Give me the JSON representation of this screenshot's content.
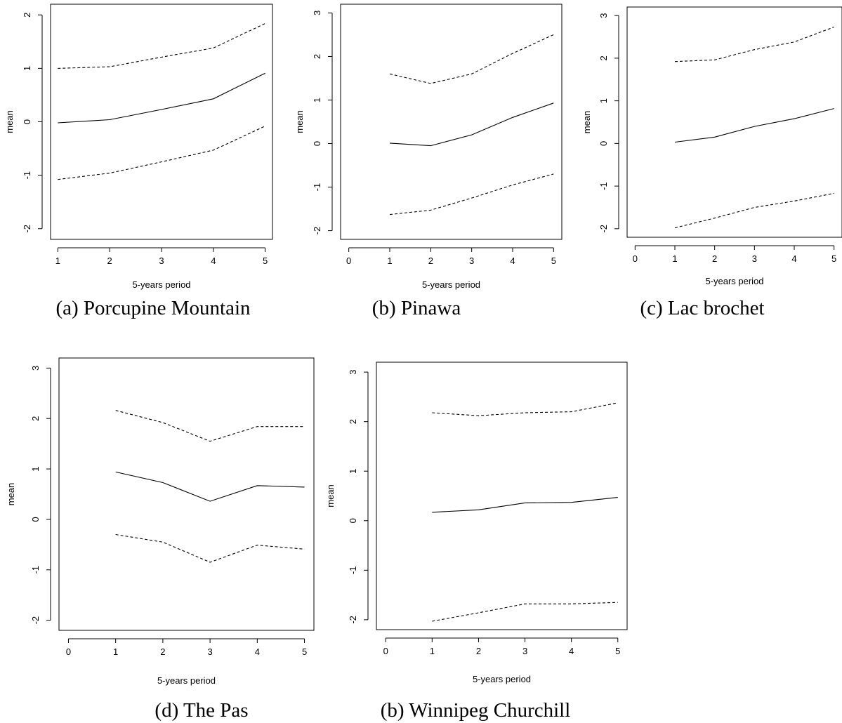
{
  "chart_data": [
    {
      "type": "line",
      "caption": "(a) Porcupine Mountain",
      "xlabel": "5-years period",
      "ylabel": "mean",
      "xlim": [
        0.86,
        5.14
      ],
      "ylim": [
        -2.2,
        2.2
      ],
      "x_ticks": [
        1,
        2,
        3,
        4,
        5
      ],
      "y_ticks": [
        -2,
        -1,
        0,
        1,
        2
      ],
      "grid": false,
      "series": [
        {
          "role": "mean",
          "style": "solid",
          "x": [
            1,
            2,
            3,
            4,
            5
          ],
          "values": [
            -0.02,
            0.04,
            0.23,
            0.43,
            0.91
          ]
        },
        {
          "role": "upper",
          "style": "dashed",
          "x": [
            1,
            2,
            3,
            4,
            5
          ],
          "values": [
            1.0,
            1.03,
            1.21,
            1.38,
            1.84
          ]
        },
        {
          "role": "lower",
          "style": "dashed",
          "x": [
            1,
            2,
            3,
            4,
            5
          ],
          "values": [
            -1.08,
            -0.96,
            -0.75,
            -0.53,
            -0.08
          ]
        }
      ]
    },
    {
      "type": "line",
      "caption": "(b) Pinawa",
      "xlabel": "5-years period",
      "ylabel": "mean",
      "xlim": [
        -0.2,
        5.2
      ],
      "ylim": [
        -2.2,
        3.2
      ],
      "x_ticks": [
        0,
        1,
        2,
        3,
        4,
        5
      ],
      "y_ticks": [
        -2,
        -1,
        0,
        1,
        2,
        3
      ],
      "grid": false,
      "series": [
        {
          "role": "mean",
          "style": "solid",
          "x": [
            1,
            2,
            3,
            4,
            5
          ],
          "values": [
            0.01,
            -0.05,
            0.2,
            0.6,
            0.93
          ]
        },
        {
          "role": "upper",
          "style": "dashed",
          "x": [
            1,
            2,
            3,
            4,
            5
          ],
          "values": [
            1.6,
            1.38,
            1.6,
            2.07,
            2.5
          ]
        },
        {
          "role": "lower",
          "style": "dashed",
          "x": [
            1,
            2,
            3,
            4,
            5
          ],
          "values": [
            -1.63,
            -1.53,
            -1.25,
            -0.95,
            -0.7
          ]
        }
      ]
    },
    {
      "type": "line",
      "caption": "(c) Lac brochet",
      "xlabel": "5-years period",
      "ylabel": "mean",
      "xlim": [
        -0.2,
        5.2
      ],
      "ylim": [
        -2.2,
        3.2
      ],
      "x_ticks": [
        0,
        1,
        2,
        3,
        4,
        5
      ],
      "y_ticks": [
        -2,
        -1,
        0,
        1,
        2,
        3
      ],
      "grid": false,
      "series": [
        {
          "role": "mean",
          "style": "solid",
          "x": [
            1,
            2,
            3,
            4,
            5
          ],
          "values": [
            0.03,
            0.15,
            0.4,
            0.58,
            0.82
          ]
        },
        {
          "role": "upper",
          "style": "dashed",
          "x": [
            1,
            2,
            3,
            4,
            5
          ],
          "values": [
            1.92,
            1.96,
            2.2,
            2.38,
            2.73
          ]
        },
        {
          "role": "lower",
          "style": "dashed",
          "x": [
            1,
            2,
            3,
            4,
            5
          ],
          "values": [
            -1.98,
            -1.75,
            -1.5,
            -1.35,
            -1.17
          ]
        }
      ]
    },
    {
      "type": "line",
      "caption": "(d)  The Pas",
      "xlabel": "5-years period",
      "ylabel": "mean",
      "xlim": [
        -0.2,
        5.2
      ],
      "ylim": [
        -2.2,
        3.2
      ],
      "x_ticks": [
        0,
        1,
        2,
        3,
        4,
        5
      ],
      "y_ticks": [
        -2,
        -1,
        0,
        1,
        2,
        3
      ],
      "grid": false,
      "series": [
        {
          "role": "mean",
          "style": "solid",
          "x": [
            1,
            2,
            3,
            4,
            5
          ],
          "values": [
            0.94,
            0.73,
            0.36,
            0.67,
            0.64
          ]
        },
        {
          "role": "upper",
          "style": "dashed",
          "x": [
            1,
            2,
            3,
            4,
            5
          ],
          "values": [
            2.16,
            1.92,
            1.55,
            1.84,
            1.84
          ]
        },
        {
          "role": "lower",
          "style": "dashed",
          "x": [
            1,
            2,
            3,
            4,
            5
          ],
          "values": [
            -0.3,
            -0.45,
            -0.85,
            -0.51,
            -0.59
          ]
        }
      ]
    },
    {
      "type": "line",
      "caption": "(b) Winnipeg Churchill",
      "xlabel": "5-years period",
      "ylabel": "mean",
      "xlim": [
        -0.2,
        5.2
      ],
      "ylim": [
        -2.2,
        3.2
      ],
      "x_ticks": [
        0,
        1,
        2,
        3,
        4,
        5
      ],
      "y_ticks": [
        -2,
        -1,
        0,
        1,
        2,
        3
      ],
      "grid": false,
      "series": [
        {
          "role": "mean",
          "style": "solid",
          "x": [
            1,
            2,
            3,
            4,
            5
          ],
          "values": [
            0.17,
            0.22,
            0.36,
            0.37,
            0.47
          ]
        },
        {
          "role": "upper",
          "style": "dashed",
          "x": [
            1,
            2,
            3,
            4,
            5
          ],
          "values": [
            2.18,
            2.12,
            2.18,
            2.2,
            2.38
          ]
        },
        {
          "role": "lower",
          "style": "dashed",
          "x": [
            1,
            2,
            3,
            4,
            5
          ],
          "values": [
            -2.03,
            -1.86,
            -1.68,
            -1.68,
            -1.65
          ]
        }
      ]
    }
  ]
}
